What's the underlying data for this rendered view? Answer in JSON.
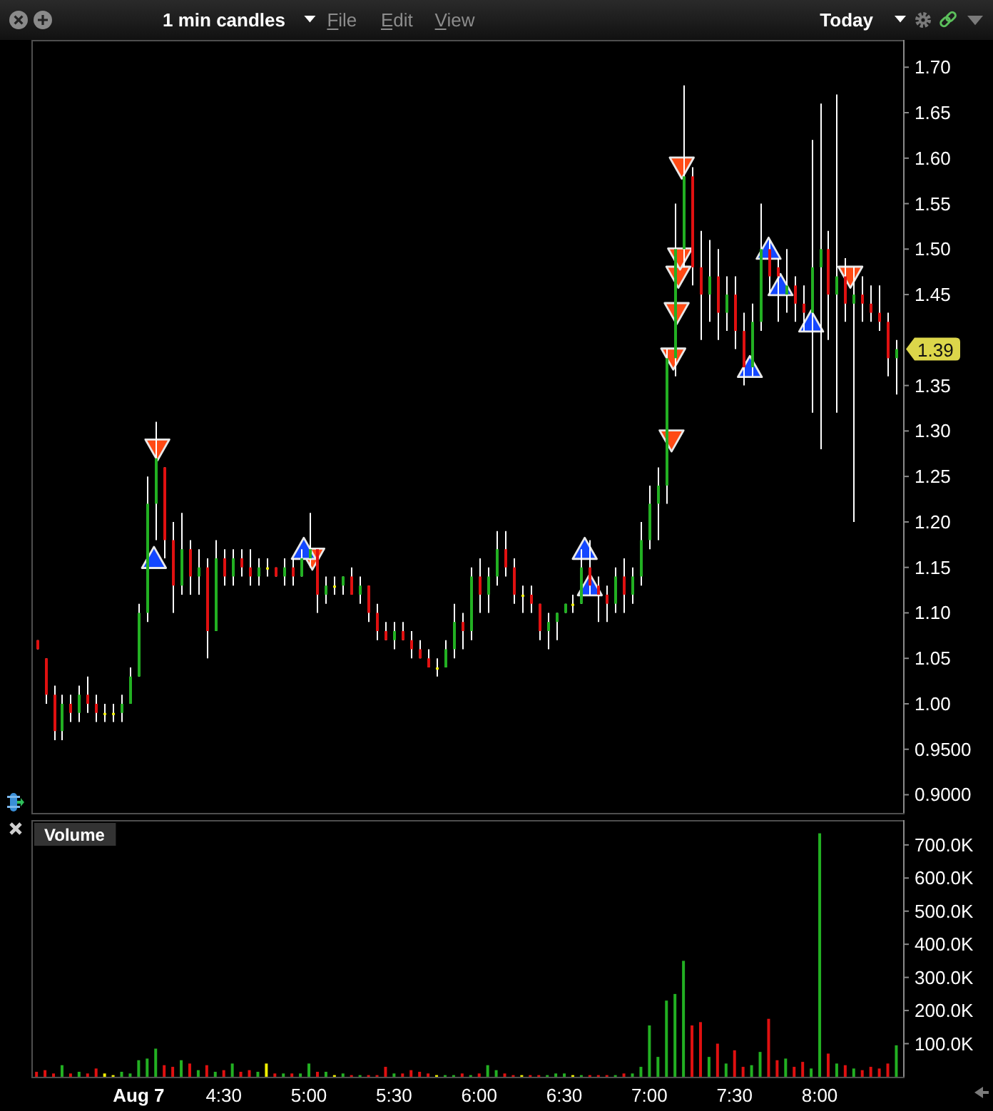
{
  "chart_data": [
    {
      "type": "candlestick",
      "title": "1 min candles",
      "annotations": [
        "File",
        "Edit",
        "View",
        "Today",
        "1.39"
      ],
      "color": "#ffffff",
      "x": [
        3.4,
        3.45,
        3.5,
        3.55,
        3.6,
        3.65,
        3.7,
        3.75,
        3.8,
        3.85,
        3.9,
        3.95,
        4,
        4.05,
        4.1,
        4.15,
        4.2,
        4.25,
        4.3,
        4.35,
        4.4,
        4.45,
        4.5,
        4.55,
        4.6,
        4.65,
        4.7,
        4.75,
        4.8,
        4.85,
        4.9,
        4.95,
        5,
        5.05,
        5.1,
        5.15,
        5.2,
        5.25,
        5.3,
        5.35,
        5.4,
        5.45,
        5.5,
        5.55,
        5.6,
        5.65,
        5.7,
        5.75,
        5.8,
        5.85,
        5.9,
        5.95,
        6,
        6.05,
        6.1,
        6.15,
        6.2,
        6.25,
        6.3,
        6.35,
        6.4,
        6.45,
        6.5,
        6.55,
        6.6,
        6.65,
        6.7,
        6.75,
        6.8,
        6.85,
        6.9,
        6.95,
        7,
        7.05,
        7.1,
        7.15,
        7.2,
        7.25,
        7.3,
        7.35,
        7.4,
        7.45,
        7.5,
        7.55,
        7.6,
        7.65,
        7.7,
        7.75,
        7.8,
        7.85,
        7.9,
        7.95,
        8,
        8.05,
        8.1,
        8.15,
        8.2,
        8.25,
        8.3,
        8.35,
        8.4,
        8.45
      ],
      "ohlc": [
        [
          1.07,
          1.07,
          1.06,
          1.06
        ],
        [
          1.05,
          1.05,
          1.0,
          1.01
        ],
        [
          1.01,
          1.02,
          0.96,
          0.97
        ],
        [
          0.97,
          1.01,
          0.96,
          1.0
        ],
        [
          1.0,
          1.01,
          0.98,
          0.99
        ],
        [
          0.99,
          1.02,
          0.98,
          1.01
        ],
        [
          1.01,
          1.03,
          0.99,
          1.0
        ],
        [
          1.0,
          1.01,
          0.98,
          0.99
        ],
        [
          0.99,
          1.0,
          0.98,
          0.99
        ],
        [
          0.99,
          1.0,
          0.98,
          0.99
        ],
        [
          0.99,
          1.01,
          0.98,
          1.0
        ],
        [
          1.0,
          1.04,
          1.0,
          1.03
        ],
        [
          1.03,
          1.11,
          1.03,
          1.1
        ],
        [
          1.1,
          1.25,
          1.09,
          1.22
        ],
        [
          1.22,
          1.31,
          1.18,
          1.27
        ],
        [
          1.26,
          1.26,
          1.16,
          1.18
        ],
        [
          1.18,
          1.2,
          1.1,
          1.13
        ],
        [
          1.13,
          1.21,
          1.12,
          1.17
        ],
        [
          1.17,
          1.18,
          1.12,
          1.14
        ],
        [
          1.14,
          1.17,
          1.12,
          1.15
        ],
        [
          1.15,
          1.16,
          1.05,
          1.08
        ],
        [
          1.08,
          1.18,
          1.08,
          1.16
        ],
        [
          1.16,
          1.17,
          1.13,
          1.14
        ],
        [
          1.14,
          1.17,
          1.13,
          1.16
        ],
        [
          1.16,
          1.17,
          1.14,
          1.15
        ],
        [
          1.15,
          1.17,
          1.13,
          1.14
        ],
        [
          1.14,
          1.16,
          1.13,
          1.15
        ],
        [
          1.15,
          1.16,
          1.14,
          1.15
        ],
        [
          1.15,
          1.15,
          1.14,
          1.14
        ],
        [
          1.14,
          1.16,
          1.13,
          1.15
        ],
        [
          1.15,
          1.16,
          1.13,
          1.14
        ],
        [
          1.14,
          1.17,
          1.14,
          1.16
        ],
        [
          1.16,
          1.21,
          1.15,
          1.17
        ],
        [
          1.17,
          1.17,
          1.1,
          1.12
        ],
        [
          1.12,
          1.14,
          1.11,
          1.13
        ],
        [
          1.13,
          1.14,
          1.12,
          1.13
        ],
        [
          1.13,
          1.14,
          1.12,
          1.14
        ],
        [
          1.14,
          1.15,
          1.12,
          1.12
        ],
        [
          1.12,
          1.14,
          1.11,
          1.13
        ],
        [
          1.13,
          1.13,
          1.09,
          1.1
        ],
        [
          1.1,
          1.11,
          1.07,
          1.08
        ],
        [
          1.08,
          1.09,
          1.07,
          1.07
        ],
        [
          1.07,
          1.09,
          1.06,
          1.08
        ],
        [
          1.08,
          1.09,
          1.07,
          1.07
        ],
        [
          1.07,
          1.08,
          1.05,
          1.06
        ],
        [
          1.06,
          1.07,
          1.05,
          1.05
        ],
        [
          1.05,
          1.06,
          1.04,
          1.04
        ],
        [
          1.04,
          1.05,
          1.03,
          1.04
        ],
        [
          1.04,
          1.07,
          1.04,
          1.06
        ],
        [
          1.06,
          1.11,
          1.05,
          1.09
        ],
        [
          1.09,
          1.1,
          1.06,
          1.08
        ],
        [
          1.08,
          1.15,
          1.07,
          1.14
        ],
        [
          1.14,
          1.16,
          1.1,
          1.12
        ],
        [
          1.12,
          1.15,
          1.1,
          1.14
        ],
        [
          1.14,
          1.19,
          1.13,
          1.17
        ],
        [
          1.17,
          1.19,
          1.14,
          1.15
        ],
        [
          1.15,
          1.16,
          1.11,
          1.12
        ],
        [
          1.12,
          1.13,
          1.1,
          1.12
        ],
        [
          1.12,
          1.13,
          1.1,
          1.11
        ],
        [
          1.11,
          1.11,
          1.07,
          1.08
        ],
        [
          1.08,
          1.1,
          1.06,
          1.09
        ],
        [
          1.09,
          1.1,
          1.07,
          1.1
        ],
        [
          1.1,
          1.11,
          1.1,
          1.11
        ],
        [
          1.11,
          1.12,
          1.1,
          1.11
        ],
        [
          1.11,
          1.17,
          1.11,
          1.15
        ],
        [
          1.15,
          1.18,
          1.12,
          1.13
        ],
        [
          1.13,
          1.14,
          1.09,
          1.12
        ],
        [
          1.12,
          1.13,
          1.09,
          1.11
        ],
        [
          1.11,
          1.15,
          1.1,
          1.14
        ],
        [
          1.14,
          1.16,
          1.1,
          1.12
        ],
        [
          1.12,
          1.15,
          1.11,
          1.14
        ],
        [
          1.14,
          1.2,
          1.13,
          1.18
        ],
        [
          1.18,
          1.24,
          1.17,
          1.22
        ],
        [
          1.22,
          1.26,
          1.18,
          1.24
        ],
        [
          1.24,
          1.39,
          1.22,
          1.38
        ],
        [
          1.38,
          1.55,
          1.36,
          1.5
        ],
        [
          1.5,
          1.68,
          1.48,
          1.58
        ],
        [
          1.58,
          1.59,
          1.46,
          1.48
        ],
        [
          1.48,
          1.52,
          1.4,
          1.45
        ],
        [
          1.45,
          1.51,
          1.42,
          1.47
        ],
        [
          1.47,
          1.5,
          1.4,
          1.43
        ],
        [
          1.43,
          1.47,
          1.41,
          1.45
        ],
        [
          1.45,
          1.47,
          1.39,
          1.41
        ],
        [
          1.41,
          1.43,
          1.35,
          1.37
        ],
        [
          1.37,
          1.44,
          1.36,
          1.42
        ],
        [
          1.42,
          1.55,
          1.41,
          1.5
        ],
        [
          1.5,
          1.51,
          1.45,
          1.47
        ],
        [
          1.48,
          1.49,
          1.42,
          1.47
        ],
        [
          1.45,
          1.5,
          1.43,
          1.46
        ],
        [
          1.46,
          1.47,
          1.42,
          1.44
        ],
        [
          1.44,
          1.46,
          1.41,
          1.43
        ],
        [
          1.43,
          1.62,
          1.32,
          1.48
        ],
        [
          1.48,
          1.66,
          1.28,
          1.5
        ],
        [
          1.5,
          1.52,
          1.4,
          1.45
        ],
        [
          1.45,
          1.67,
          1.32,
          1.47
        ],
        [
          1.47,
          1.49,
          1.42,
          1.44
        ],
        [
          1.44,
          1.48,
          1.2,
          1.45
        ],
        [
          1.45,
          1.47,
          1.42,
          1.44
        ],
        [
          1.44,
          1.46,
          1.42,
          1.43
        ],
        [
          1.43,
          1.46,
          1.41,
          1.42
        ],
        [
          1.42,
          1.43,
          1.36,
          1.38
        ],
        [
          1.38,
          1.4,
          1.34,
          1.39
        ]
      ],
      "colors": [
        "#e01010",
        "#e01010",
        "#e01010",
        "#22b022",
        "#e01010",
        "#22b022",
        "#e01010",
        "#e01010",
        "#f0f000",
        "#f0f000",
        "#22b022",
        "#22b022",
        "#22b022",
        "#22b022",
        "#22b022",
        "#e01010",
        "#e01010",
        "#22b022",
        "#e01010",
        "#22b022",
        "#e01010",
        "#22b022",
        "#e01010",
        "#22b022",
        "#e01010",
        "#e01010",
        "#22b022",
        "#f0f000",
        "#e01010",
        "#22b022",
        "#e01010",
        "#22b022",
        "#22b022",
        "#e01010",
        "#22b022",
        "#f0f000",
        "#22b022",
        "#e01010",
        "#22b022",
        "#e01010",
        "#e01010",
        "#e01010",
        "#22b022",
        "#e01010",
        "#e01010",
        "#e01010",
        "#e01010",
        "#f0f000",
        "#22b022",
        "#22b022",
        "#e01010",
        "#22b022",
        "#e01010",
        "#22b022",
        "#22b022",
        "#e01010",
        "#e01010",
        "#f0f000",
        "#e01010",
        "#e01010",
        "#22b022",
        "#22b022",
        "#22b022",
        "#f0f000",
        "#22b022",
        "#e01010",
        "#e01010",
        "#e01010",
        "#22b022",
        "#e01010",
        "#22b022",
        "#22b022",
        "#22b022",
        "#22b022",
        "#22b022",
        "#22b022",
        "#22b022",
        "#e01010",
        "#e01010",
        "#22b022",
        "#e01010",
        "#22b022",
        "#e01010",
        "#e01010",
        "#22b022",
        "#22b022",
        "#e01010",
        "#e01010",
        "#22b022",
        "#e01010",
        "#e01010",
        "#22b022",
        "#22b022",
        "#e01010",
        "#22b022",
        "#e01010",
        "#22b022",
        "#e01010",
        "#e01010",
        "#e01010",
        "#e01010",
        "#22b022"
      ],
      "series": [
        {
          "type": "scatter",
          "marker": "triangle-down",
          "color": "#ff4a14",
          "x": [
            4.11,
            5.02,
            7.13,
            7.14,
            7.16,
            7.17,
            7.18,
            7.19,
            8.18
          ],
          "values": [
            1.28,
            1.16,
            1.29,
            1.38,
            1.43,
            1.47,
            1.49,
            1.59,
            1.47
          ]
        },
        {
          "type": "scatter",
          "marker": "triangle",
          "color": "#1447ff",
          "x": [
            4.09,
            4.97,
            6.62,
            6.65,
            7.59,
            7.7,
            7.77,
            7.95
          ],
          "values": [
            1.16,
            1.17,
            1.17,
            1.13,
            1.37,
            1.5,
            1.46,
            1.42
          ]
        }
      ],
      "xlim": [
        3.37,
        8.49
      ],
      "ylim": [
        0.88,
        1.73
      ],
      "yticks": [
        {
          "value": 0.9,
          "label": "0.9000"
        },
        {
          "value": 0.95,
          "label": "0.9500"
        },
        {
          "value": 1,
          "label": "1.00"
        },
        1.05,
        {
          "value": 1.1,
          "label": "1.10"
        },
        1.15,
        {
          "value": 1.2,
          "label": "1.20"
        },
        1.25,
        {
          "value": 1.3,
          "label": "1.30"
        },
        1.35,
        1.45,
        {
          "value": 1.5,
          "label": "1.50"
        },
        1.55,
        {
          "value": 1.6,
          "label": "1.60"
        },
        1.65,
        {
          "value": 1.7,
          "label": "1.70"
        }
      ],
      "tick_labels": "y"
    },
    {
      "type": "bar",
      "title": "Volume",
      "x": [
        3.4,
        3.45,
        3.5,
        3.55,
        3.6,
        3.65,
        3.7,
        3.75,
        3.8,
        3.85,
        3.9,
        3.95,
        4,
        4.05,
        4.1,
        4.15,
        4.2,
        4.25,
        4.3,
        4.35,
        4.4,
        4.45,
        4.5,
        4.55,
        4.6,
        4.65,
        4.7,
        4.75,
        4.8,
        4.85,
        4.9,
        4.95,
        5,
        5.05,
        5.1,
        5.15,
        5.2,
        5.25,
        5.3,
        5.35,
        5.4,
        5.45,
        5.5,
        5.55,
        5.6,
        5.65,
        5.7,
        5.75,
        5.8,
        5.85,
        5.9,
        5.95,
        6,
        6.05,
        6.1,
        6.15,
        6.2,
        6.25,
        6.3,
        6.35,
        6.4,
        6.45,
        6.5,
        6.55,
        6.6,
        6.65,
        6.7,
        6.75,
        6.8,
        6.85,
        6.9,
        6.95,
        7,
        7.05,
        7.1,
        7.15,
        7.2,
        7.25,
        7.3,
        7.35,
        7.4,
        7.45,
        7.5,
        7.55,
        7.6,
        7.65,
        7.7,
        7.75,
        7.8,
        7.85,
        7.9,
        7.95,
        8,
        8.05,
        8.1,
        8.15,
        8.2,
        8.25,
        8.3,
        8.35,
        8.4,
        8.45
      ],
      "values": [
        15000,
        20000,
        10000,
        35000,
        10000,
        15000,
        10000,
        25000,
        10000,
        5000,
        15000,
        10000,
        50000,
        55000,
        85000,
        35000,
        30000,
        50000,
        40000,
        20000,
        35000,
        15000,
        20000,
        40000,
        15000,
        20000,
        15000,
        40000,
        10000,
        10000,
        10000,
        10000,
        40000,
        15000,
        15000,
        5000,
        10000,
        5000,
        5000,
        5000,
        5000,
        30000,
        10000,
        10000,
        20000,
        15000,
        10000,
        5000,
        5000,
        5000,
        10000,
        5000,
        10000,
        35000,
        20000,
        10000,
        5000,
        5000,
        5000,
        5000,
        5000,
        10000,
        10000,
        5000,
        5000,
        5000,
        5000,
        5000,
        5000,
        10000,
        10000,
        30000,
        155000,
        60000,
        230000,
        250000,
        350000,
        155000,
        165000,
        60000,
        100000,
        40000,
        80000,
        30000,
        35000,
        75000,
        175000,
        50000,
        55000,
        30000,
        45000,
        25000,
        735000,
        70000,
        40000,
        35000,
        25000,
        20000,
        30000,
        25000,
        40000,
        95000
      ],
      "colors": [
        "#e01010",
        "#e01010",
        "#e01010",
        "#22b022",
        "#e01010",
        "#22b022",
        "#e01010",
        "#e01010",
        "#f0f000",
        "#f0f000",
        "#22b022",
        "#22b022",
        "#22b022",
        "#22b022",
        "#22b022",
        "#e01010",
        "#e01010",
        "#22b022",
        "#e01010",
        "#22b022",
        "#e01010",
        "#22b022",
        "#e01010",
        "#22b022",
        "#e01010",
        "#e01010",
        "#22b022",
        "#f0f000",
        "#e01010",
        "#22b022",
        "#e01010",
        "#22b022",
        "#22b022",
        "#e01010",
        "#22b022",
        "#f0f000",
        "#22b022",
        "#e01010",
        "#22b022",
        "#e01010",
        "#e01010",
        "#e01010",
        "#22b022",
        "#e01010",
        "#e01010",
        "#e01010",
        "#e01010",
        "#f0f000",
        "#22b022",
        "#22b022",
        "#e01010",
        "#22b022",
        "#e01010",
        "#22b022",
        "#22b022",
        "#e01010",
        "#e01010",
        "#f0f000",
        "#e01010",
        "#e01010",
        "#22b022",
        "#22b022",
        "#22b022",
        "#f0f000",
        "#22b022",
        "#e01010",
        "#e01010",
        "#e01010",
        "#22b022",
        "#e01010",
        "#22b022",
        "#22b022",
        "#22b022",
        "#22b022",
        "#22b022",
        "#22b022",
        "#22b022",
        "#e01010",
        "#e01010",
        "#22b022",
        "#e01010",
        "#22b022",
        "#e01010",
        "#e01010",
        "#22b022",
        "#22b022",
        "#e01010",
        "#e01010",
        "#22b022",
        "#e01010",
        "#e01010",
        "#22b022",
        "#22b022",
        "#e01010",
        "#22b022",
        "#e01010",
        "#22b022",
        "#e01010",
        "#e01010",
        "#e01010",
        "#e01010",
        "#22b022"
      ],
      "xlim": [
        3.37,
        8.49
      ],
      "xticks": [
        {
          "value": 4,
          "label": "Aug 7"
        },
        {
          "value": 4.5,
          "label": "4:30"
        },
        {
          "value": 5,
          "label": "5:00"
        },
        {
          "value": 5.5,
          "label": "5:30"
        },
        {
          "value": 6,
          "label": "6:00"
        },
        {
          "value": 6.5,
          "label": "6:30"
        },
        {
          "value": 7,
          "label": "7:00"
        },
        {
          "value": 7.5,
          "label": "7:30"
        },
        {
          "value": 8,
          "label": "8:00"
        }
      ],
      "ylim": [
        0,
        775000
      ],
      "yticks": [
        {
          "value": 100000,
          "label": "100.0K"
        },
        {
          "value": 200000,
          "label": "200.0K"
        },
        {
          "value": 300000,
          "label": "300.0K"
        },
        {
          "value": 400000,
          "label": "400.0K"
        },
        {
          "value": 500000,
          "label": "500.0K"
        },
        {
          "value": 600000,
          "label": "600.0K"
        },
        {
          "value": 700000,
          "label": "700.0K"
        }
      ]
    }
  ]
}
